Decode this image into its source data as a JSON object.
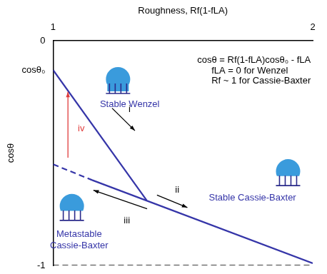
{
  "chart_data": {
    "type": "line",
    "x_label": "Roughness, Rf(1-fLA)",
    "y_label": "cosθ",
    "xlim": [
      1,
      2
    ],
    "ylim": [
      -1,
      0
    ],
    "xticks": [
      1,
      2
    ],
    "yticks": [
      0,
      {
        "value": -0.13,
        "label": "cosθ₀"
      },
      -1
    ],
    "grid": false,
    "series": [
      {
        "x": [
          1,
          1.36
        ],
        "values": [
          -0.13,
          -0.71
        ],
        "color": "#3535a8",
        "line_style": "solid"
      },
      {
        "x": [
          1,
          1.15
        ],
        "values": [
          -0.55,
          -0.62
        ],
        "color": "#3535a8",
        "line_style": "dashed"
      },
      {
        "x": [
          1.15,
          2
        ],
        "values": [
          -0.62,
          -0.99
        ],
        "color": "#3535a8",
        "line_style": "solid"
      },
      {
        "x": [
          1,
          2
        ],
        "values": [
          -1,
          -1
        ],
        "color": "#000000",
        "line_style": "dashed"
      }
    ],
    "annotations": [
      {
        "text": "cosθ = Rf(1-fLA)cosθ₀ - fLA",
        "color": "#000000"
      },
      {
        "text": "fLA = 0 for Wenzel",
        "color": "#000000"
      },
      {
        "text": "Rf ~ 1 for Cassie-Baxter",
        "color": "#000000"
      },
      {
        "text": "Stable Wenzel",
        "color": "#3535a8"
      },
      {
        "text": "Stable Cassie-Baxter",
        "color": "#3535a8"
      },
      {
        "text": "Metastable Cassie-Baxter",
        "color": "#3535a8"
      },
      {
        "text": "i",
        "color": "#000000"
      },
      {
        "text": "ii",
        "color": "#000000"
      },
      {
        "text": "iii",
        "color": "#000000"
      },
      {
        "text": "iv",
        "color": "#e03c3c"
      }
    ]
  }
}
